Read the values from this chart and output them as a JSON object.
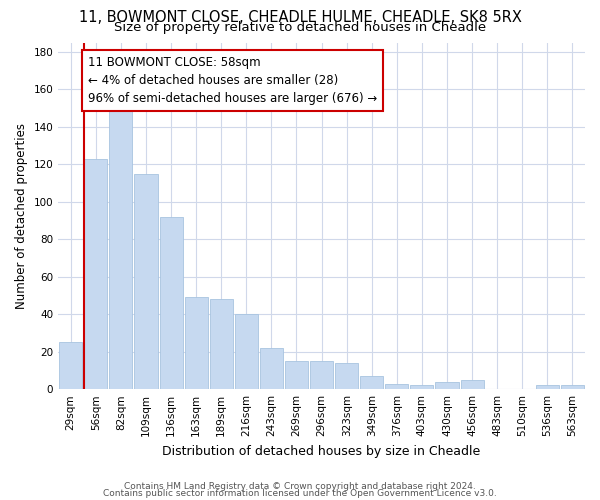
{
  "title1": "11, BOWMONT CLOSE, CHEADLE HULME, CHEADLE, SK8 5RX",
  "title2": "Size of property relative to detached houses in Cheadle",
  "xlabel": "Distribution of detached houses by size in Cheadle",
  "ylabel": "Number of detached properties",
  "categories": [
    "29sqm",
    "56sqm",
    "82sqm",
    "109sqm",
    "136sqm",
    "163sqm",
    "189sqm",
    "216sqm",
    "243sqm",
    "269sqm",
    "296sqm",
    "323sqm",
    "349sqm",
    "376sqm",
    "403sqm",
    "430sqm",
    "456sqm",
    "483sqm",
    "510sqm",
    "536sqm",
    "563sqm"
  ],
  "values": [
    25,
    123,
    149,
    115,
    92,
    49,
    48,
    40,
    22,
    15,
    15,
    14,
    7,
    3,
    2,
    4,
    5,
    0,
    0,
    2,
    2
  ],
  "bar_color": "#c6d9f0",
  "bar_edge_color": "#a8c4e0",
  "highlight_line_color": "#cc0000",
  "annotation_text": "11 BOWMONT CLOSE: 58sqm\n← 4% of detached houses are smaller (28)\n96% of semi-detached houses are larger (676) →",
  "annotation_box_color": "#ffffff",
  "annotation_box_edge": "#cc0000",
  "ylim": [
    0,
    185
  ],
  "yticks": [
    0,
    20,
    40,
    60,
    80,
    100,
    120,
    140,
    160,
    180
  ],
  "footer1": "Contains HM Land Registry data © Crown copyright and database right 2024.",
  "footer2": "Contains public sector information licensed under the Open Government Licence v3.0.",
  "bg_color": "#ffffff",
  "grid_color": "#d0d8ea",
  "title1_fontsize": 10.5,
  "title2_fontsize": 9.5,
  "ann_fontsize": 8.5,
  "ylabel_fontsize": 8.5,
  "xlabel_fontsize": 9,
  "tick_fontsize": 7.5,
  "footer_fontsize": 6.5
}
